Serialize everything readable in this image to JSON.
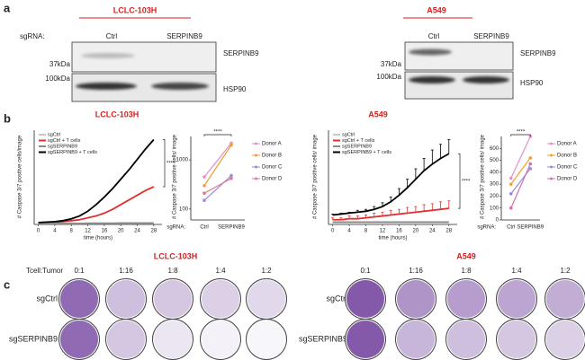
{
  "panel_labels": [
    "a",
    "b",
    "c"
  ],
  "blots": [
    {
      "cell_line": "LCLC-103H",
      "sgrna_label": "sgRNA:",
      "lanes": [
        "Ctrl",
        "SERPINB9"
      ],
      "markers": [
        "37kDa",
        "100kDa"
      ],
      "proteins": [
        "SERPINB9",
        "HSP90"
      ]
    },
    {
      "cell_line": "A549",
      "lanes": [
        "Ctrl",
        "SERPINB9"
      ],
      "markers": [
        "37kDa",
        "100kDa"
      ],
      "proteins": [
        "SERPINB9",
        "HSP90"
      ]
    }
  ],
  "chart_data": [
    {
      "type": "line",
      "title": "LCLC-103H",
      "ylabel": "# Caspase 3/7 positive cells/image",
      "xlabel": "time (hours)",
      "x": [
        0,
        2,
        4,
        6,
        8,
        10,
        12,
        14,
        16,
        18,
        20,
        22,
        24,
        26,
        28
      ],
      "xlim": [
        -1,
        30
      ],
      "xticks": [
        0,
        4,
        8,
        12,
        16,
        20,
        24,
        28
      ],
      "ylim": [
        0,
        100
      ],
      "annotation": "****",
      "series": [
        {
          "name": "sgCtrl",
          "color": "#c8c8c8",
          "values": [
            1,
            1,
            1,
            1,
            1,
            1,
            1.5,
            1.5,
            1.5,
            1.5,
            2,
            2,
            2,
            2,
            2
          ]
        },
        {
          "name": "sgCtrl + T cells",
          "color": "#e03030",
          "values": [
            2,
            2,
            2.5,
            3,
            4,
            5,
            7,
            9,
            12,
            16,
            21,
            26,
            31,
            36,
            40
          ]
        },
        {
          "name": "sgSERPINB9",
          "color": "#8a8a8a",
          "values": [
            1,
            1,
            1,
            1,
            1,
            1,
            1,
            1,
            1,
            1,
            1,
            1,
            1,
            1,
            1
          ]
        },
        {
          "name": "sgSERPINB9 + T cells",
          "color": "#000000",
          "values": [
            2,
            2.5,
            3,
            4,
            6,
            9,
            14,
            21,
            29,
            38,
            48,
            58,
            69,
            80,
            90
          ]
        }
      ]
    },
    {
      "type": "paired",
      "ylabel": "# Caspase 3/7 positive cells/ image",
      "xlabel": "sgRNA:",
      "categories": [
        "Ctrl",
        "SERPINB9"
      ],
      "log_scale": true,
      "ylim": [
        60,
        3000
      ],
      "yticks": [
        100,
        1000
      ],
      "annotation": "****",
      "series": [
        {
          "name": "Donor A",
          "color": "#e58fc9",
          "values": [
            450,
            2200
          ]
        },
        {
          "name": "Donor B",
          "color": "#f0a030",
          "values": [
            300,
            2000
          ]
        },
        {
          "name": "Donor C",
          "color": "#9b8ad6",
          "values": [
            150,
            480
          ]
        },
        {
          "name": "Donor D",
          "color": "#e07a8a",
          "values": [
            210,
            420
          ]
        }
      ]
    },
    {
      "type": "line",
      "title": "A549",
      "ylabel": "# Caspase 3/7 positive cells/ image",
      "xlabel": "time (hours)",
      "x": [
        0,
        2,
        4,
        6,
        8,
        10,
        12,
        14,
        16,
        18,
        20,
        22,
        24,
        26,
        28
      ],
      "xlim": [
        -1,
        30
      ],
      "xticks": [
        0,
        4,
        8,
        12,
        16,
        20,
        24,
        28
      ],
      "ylim": [
        0,
        100
      ],
      "annotation": "****",
      "series": [
        {
          "name": "sgCtrl",
          "color": "#c8c8c8",
          "values": [
            2,
            2,
            2,
            2,
            2,
            2,
            2,
            2,
            2,
            2,
            2,
            2,
            2,
            2,
            2
          ]
        },
        {
          "name": "sgCtrl + T cells",
          "color": "#e03030",
          "values": [
            5,
            5,
            6,
            6,
            7,
            8,
            9,
            10,
            11,
            12,
            13,
            14,
            15,
            16,
            17
          ],
          "errors": [
            2,
            2,
            3,
            3,
            3,
            4,
            4,
            5,
            5,
            6,
            6,
            7,
            7,
            8,
            8
          ]
        },
        {
          "name": "sgSERPINB9",
          "color": "#8a8a8a",
          "values": [
            2.5,
            2.5,
            2.5,
            2.5,
            2.5,
            2.5,
            2.5,
            2.5,
            2.5,
            2.5,
            2.5,
            2.5,
            2.5,
            2.5,
            2.5
          ]
        },
        {
          "name": "sgSERPINB9 + T cells",
          "color": "#000000",
          "values": [
            10,
            11,
            12,
            13,
            14,
            16,
            19,
            24,
            31,
            39,
            48,
            57,
            64,
            70,
            75
          ],
          "errors": [
            1,
            1,
            1,
            2,
            2,
            3,
            4,
            5,
            7,
            9,
            11,
            13,
            15,
            15,
            15
          ]
        }
      ]
    },
    {
      "type": "paired",
      "ylabel": "# Caspase 3/7 positive cells/ image",
      "xlabel": "sgRNA:",
      "categories": [
        "Ctrl",
        "SERPINB9"
      ],
      "ylim": [
        0,
        700
      ],
      "yticks": [
        0,
        100,
        200,
        300,
        400,
        500,
        600
      ],
      "annotation": "****",
      "series": [
        {
          "name": "Donor A",
          "color": "#e58fc9",
          "values": [
            350,
            700
          ]
        },
        {
          "name": "Donor B",
          "color": "#f0a030",
          "values": [
            300,
            520
          ]
        },
        {
          "name": "Donor C",
          "color": "#9b8ad6",
          "values": [
            220,
            430
          ]
        },
        {
          "name": "Donor D",
          "color": "#d070b0",
          "values": [
            100,
            470
          ]
        }
      ]
    }
  ],
  "plates": [
    {
      "cell_line": "LCLC-103H",
      "ratio_label": "Tcell:Tumor",
      "ratios": [
        "0:1",
        "1:16",
        "1:8",
        "1:4",
        "1:2"
      ],
      "rows": [
        "sgCtrl",
        "sgSERPINB9"
      ]
    },
    {
      "cell_line": "A549",
      "ratios": [
        "0:1",
        "1:16",
        "1:8",
        "1:4",
        "1:2"
      ],
      "rows": [
        "sgCtrl",
        "sgSERPINB9"
      ]
    }
  ]
}
